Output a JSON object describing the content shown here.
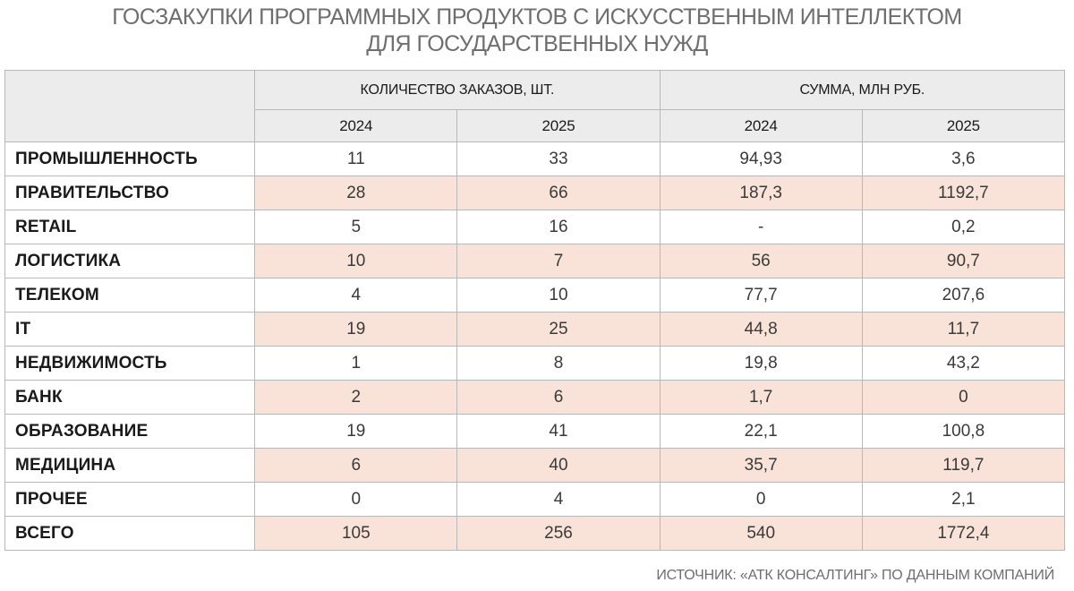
{
  "title": {
    "line1": "ГОСЗАКУПКИ ПРОГРАММНЫХ ПРОДУКТОВ С ИСКУССТВЕННЫМ ИНТЕЛЛЕКТОМ",
    "line2": "ДЛЯ ГОСУДАРСТВЕННЫХ НУЖД"
  },
  "table": {
    "group_headers": [
      "КОЛИЧЕСТВО ЗАКАЗОВ, ШТ.",
      "СУММА, МЛН РУБ."
    ],
    "year_headers": [
      "2024",
      "2025",
      "2024",
      "2025"
    ],
    "rows": [
      {
        "label": "ПРОМЫШЛЕННОСТЬ",
        "values": [
          "11",
          "33",
          "94,93",
          "3,6"
        ]
      },
      {
        "label": "ПРАВИТЕЛЬСТВО",
        "values": [
          "28",
          "66",
          "187,3",
          "1192,7"
        ]
      },
      {
        "label": "RETAIL",
        "values": [
          "5",
          "16",
          "-",
          "0,2"
        ]
      },
      {
        "label": "ЛОГИСТИКА",
        "values": [
          "10",
          "7",
          "56",
          "90,7"
        ]
      },
      {
        "label": "ТЕЛЕКОМ",
        "values": [
          "4",
          "10",
          "77,7",
          "207,6"
        ]
      },
      {
        "label": "IT",
        "values": [
          "19",
          "25",
          "44,8",
          "11,7"
        ]
      },
      {
        "label": "НЕДВИЖИМОСТЬ",
        "values": [
          "1",
          "8",
          "19,8",
          "43,2"
        ]
      },
      {
        "label": "БАНК",
        "values": [
          "2",
          "6",
          "1,7",
          "0"
        ]
      },
      {
        "label": "ОБРАЗОВАНИЕ",
        "values": [
          "19",
          "41",
          "22,1",
          "100,8"
        ]
      },
      {
        "label": "МЕДИЦИНА",
        "values": [
          "6",
          "40",
          "35,7",
          "119,7"
        ]
      },
      {
        "label": "ПРОЧЕЕ",
        "values": [
          "0",
          "4",
          "0",
          "2,1"
        ]
      },
      {
        "label": "ВСЕГО",
        "values": [
          "105",
          "256",
          "540",
          "1772,4"
        ]
      }
    ]
  },
  "source": "ИСТОЧНИК: «АТК КОНСАЛТИНГ» ПО ДАННЫМ КОМПАНИЙ",
  "colors": {
    "shaded_row": "#f9e3d8",
    "header_bg": "#ececec",
    "title_text": "#6e6e6e"
  }
}
